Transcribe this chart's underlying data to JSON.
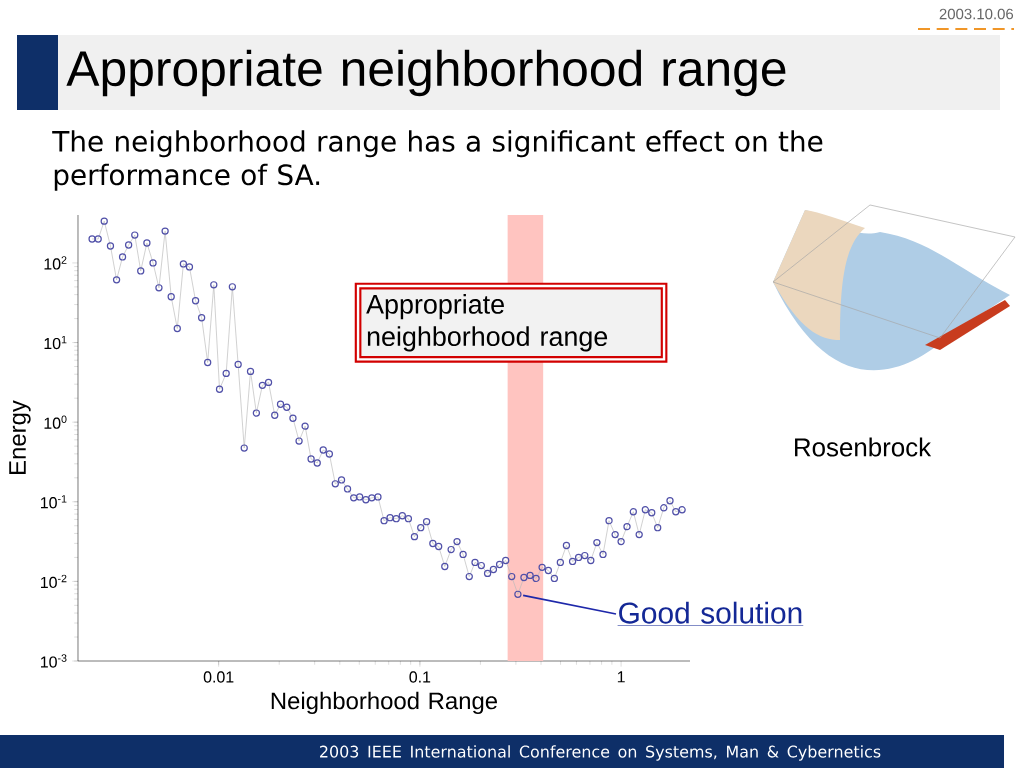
{
  "chart_data": {
    "type": "line",
    "title": "Appropriate neighborhood range",
    "subtitle": "The neighborhood range has a significant effect on the  performance of SA.",
    "xlabel": "Neighborhood Range",
    "ylabel": "Energy",
    "log": "xy",
    "marker": "circle",
    "xlim": [
      0.002,
      2.2
    ],
    "ylim": [
      0.001,
      400
    ],
    "xticks": [
      0.01,
      0.1,
      1
    ],
    "yticks": [
      {
        "value": 0.001,
        "label": "10$^{-3}$"
      },
      {
        "value": 0.01,
        "label": "10$^{-2}$"
      },
      {
        "value": 0.1,
        "label": "10$^{-1}$"
      },
      {
        "value": 1,
        "label": "10$^{0}$"
      },
      {
        "value": 10,
        "label": "10$^{1}$"
      },
      {
        "value": 100,
        "label": "10$^{2}$"
      }
    ],
    "series": [
      {
        "color": "#5050a8",
        "x": [
          0.00235,
          0.00252,
          0.0027,
          0.0029,
          0.00311,
          0.00333,
          0.00357,
          0.00383,
          0.0041,
          0.0044,
          0.00472,
          0.00505,
          0.00542,
          0.00581,
          0.00623,
          0.00668,
          0.00716,
          0.00768,
          0.00823,
          0.00882,
          0.00946,
          0.0101,
          0.0109,
          0.0117,
          0.0125,
          0.0134,
          0.0144,
          0.0154,
          0.0165,
          0.0177,
          0.019,
          0.0203,
          0.0218,
          0.0234,
          0.0251,
          0.0269,
          0.0288,
          0.0309,
          0.0331,
          0.0355,
          0.038,
          0.0408,
          0.0437,
          0.0469,
          0.0502,
          0.0539,
          0.0577,
          0.0619,
          0.0664,
          0.0711,
          0.0763,
          0.0818,
          0.0877,
          0.094,
          0.101,
          0.108,
          0.116,
          0.124,
          0.133,
          0.143,
          0.153,
          0.164,
          0.176,
          0.188,
          0.202,
          0.217,
          0.232,
          0.249,
          0.267,
          0.286,
          0.307,
          0.329,
          0.353,
          0.378,
          0.405,
          0.435,
          0.466,
          0.499,
          0.535,
          0.574,
          0.615,
          0.66,
          0.707,
          0.758,
          0.813,
          0.871,
          0.934,
          1.0,
          1.07,
          1.15,
          1.23,
          1.32,
          1.42,
          1.52,
          1.63,
          1.75,
          1.87,
          2.01
        ],
        "values": [
          200,
          200,
          335,
          163,
          61.3,
          119,
          168,
          224,
          79.4,
          178,
          100,
          48.7,
          251,
          37.6,
          15.0,
          97.2,
          89.1,
          33.5,
          20.5,
          5.62,
          53.1,
          2.59,
          4.1,
          50.1,
          5.31,
          0.473,
          4.34,
          1.3,
          2.9,
          3.16,
          1.22,
          1.68,
          1.54,
          1.12,
          0.579,
          0.891,
          0.345,
          0.307,
          0.447,
          0.398,
          0.168,
          0.188,
          0.145,
          0.112,
          0.115,
          0.106,
          0.112,
          0.115,
          0.0579,
          0.0631,
          0.0613,
          0.0668,
          0.0613,
          0.0365,
          0.0473,
          0.0562,
          0.0299,
          0.0274,
          0.0154,
          0.0251,
          0.0316,
          0.0218,
          0.0115,
          0.0173,
          0.0158,
          0.0126,
          0.0141,
          0.0163,
          0.0183,
          0.0115,
          0.00688,
          0.0112,
          0.0119,
          0.0109,
          0.015,
          0.0137,
          0.0109,
          0.0173,
          0.0282,
          0.0178,
          0.02,
          0.0211,
          0.0183,
          0.0307,
          0.0218,
          0.0579,
          0.0387,
          0.0316,
          0.0487,
          0.075,
          0.0387,
          0.0794,
          0.0729,
          0.0473,
          0.0841,
          0.103,
          0.075,
          0.0794
        ]
      }
    ],
    "bands": [
      {
        "axis": "x",
        "from": 0.273,
        "to": 0.41,
        "label": "Appropriate neighborhood range",
        "color": "#ffc4c0"
      }
    ],
    "annotations": [
      {
        "text": "Good solution",
        "x": 0.307,
        "y": 0.00688
      },
      "Rosenbrock",
      "2003.10.06",
      "2003 IEEE International Conference on Systems, Man & Cybernetics"
    ]
  }
}
